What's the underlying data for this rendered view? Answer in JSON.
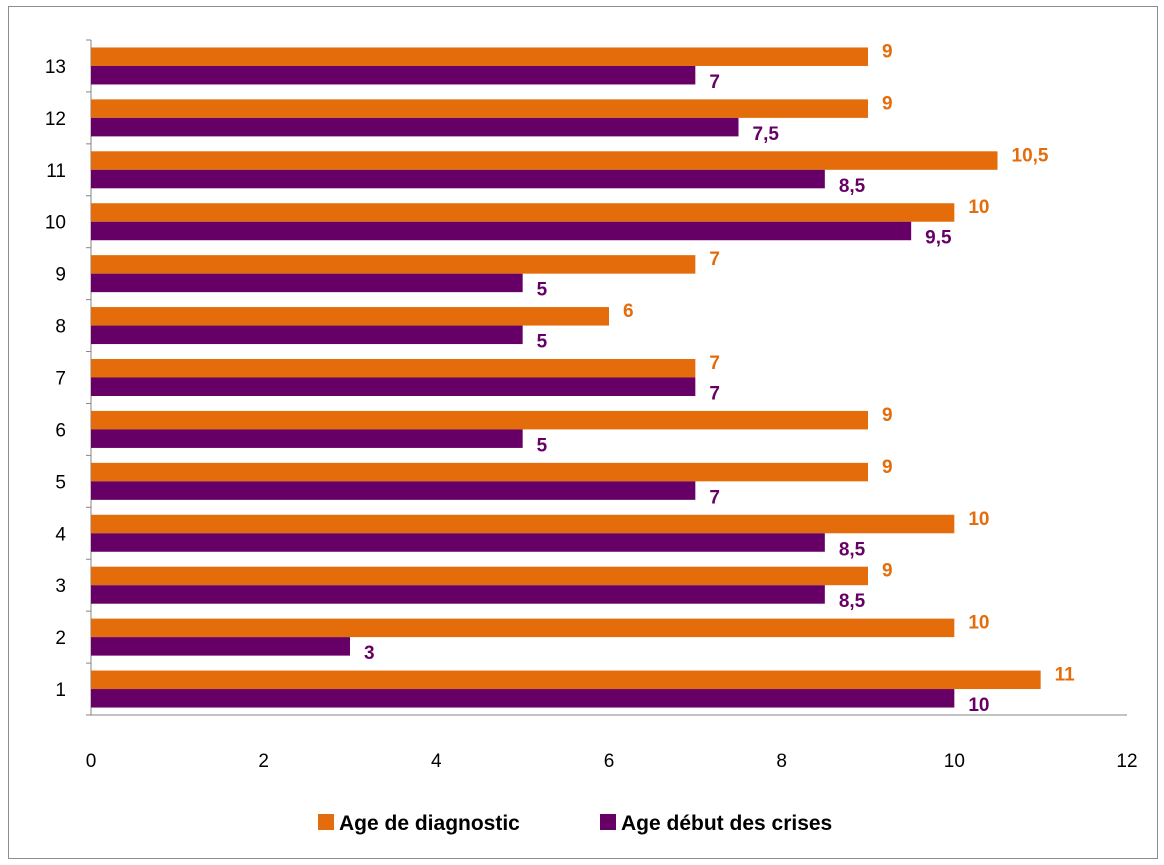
{
  "chart_data": {
    "type": "bar",
    "orientation": "horizontal",
    "categories": [
      "1",
      "2",
      "3",
      "4",
      "5",
      "6",
      "7",
      "8",
      "9",
      "10",
      "11",
      "12",
      "13"
    ],
    "series": [
      {
        "name": "Age de diagnostic",
        "color": "#E46C0A",
        "values": [
          11,
          10,
          9,
          10,
          9,
          9,
          7,
          6,
          7,
          10,
          10.5,
          9,
          9
        ],
        "labels": [
          "11",
          "10",
          "9",
          "10",
          "9",
          "9",
          "7",
          "6",
          "7",
          "10",
          "10,5",
          "9",
          "9"
        ]
      },
      {
        "name": "Age  début des crises",
        "color": "#660066",
        "values": [
          10,
          3,
          8.5,
          8.5,
          7,
          5,
          7,
          5,
          5,
          9.5,
          8.5,
          7.5,
          7
        ],
        "labels": [
          "10",
          "3",
          "8,5",
          "8,5",
          "7",
          "5",
          "7",
          "5",
          "5",
          "9,5",
          "8,5",
          "7,5",
          "7"
        ]
      }
    ],
    "xlim": [
      0,
      12
    ],
    "xticks": [
      "0",
      "2",
      "4",
      "6",
      "8",
      "10",
      "12"
    ],
    "grid": false,
    "legend_position": "bottom",
    "title": "",
    "xlabel": "",
    "ylabel": ""
  }
}
